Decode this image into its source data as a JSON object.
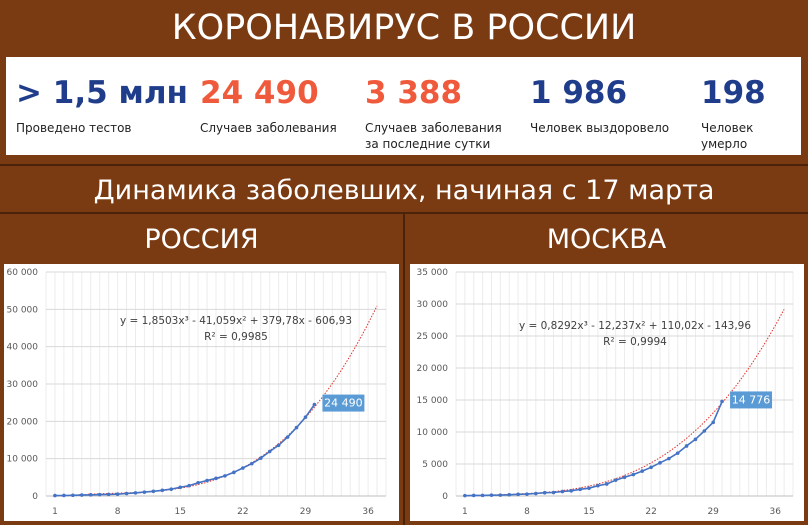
{
  "header": {
    "title": "КОРОНАВИРУС В РОССИИ"
  },
  "stats": [
    {
      "value": "> 1,5 млн",
      "label": "Проведено тестов",
      "color": "#1f3d8a"
    },
    {
      "value": "24 490",
      "label": "Случаев заболевания",
      "color": "#f05a3c"
    },
    {
      "value": "3 388",
      "label": "Случаев заболевания за последние сутки",
      "color": "#f05a3c"
    },
    {
      "value": "1 986",
      "label": "Человек выздоровело",
      "color": "#1f3d8a"
    },
    {
      "value": "198",
      "label": "Человек умерло",
      "color": "#1f3d8a"
    }
  ],
  "subtitle": "Динамика заболевших, начиная с 17 марта",
  "regions": {
    "russia": "РОССИЯ",
    "moscow": "МОСКВА"
  },
  "chart_data": [
    {
      "type": "scatter",
      "region": "РОССИЯ",
      "xlim": [
        0,
        38
      ],
      "ylim": [
        0,
        60000
      ],
      "x_ticks": [
        1,
        8,
        15,
        22,
        29,
        36
      ],
      "y_ticks": [
        "0",
        "10 000",
        "20 000",
        "30 000",
        "40 000",
        "50 000",
        "60 000"
      ],
      "y_tick_values": [
        0,
        10000,
        20000,
        30000,
        40000,
        50000,
        60000
      ],
      "series_color": "#4472c4",
      "trend_color": "#e0302a",
      "x": [
        1,
        2,
        3,
        4,
        5,
        6,
        7,
        8,
        9,
        10,
        11,
        12,
        13,
        14,
        15,
        16,
        17,
        18,
        19,
        20,
        21,
        22,
        23,
        24,
        25,
        26,
        27,
        28,
        29,
        30
      ],
      "values": [
        114,
        147,
        199,
        253,
        306,
        367,
        438,
        495,
        658,
        840,
        1036,
        1264,
        1534,
        1836,
        2337,
        2777,
        3548,
        4149,
        4731,
        5389,
        6343,
        7497,
        8672,
        10131,
        11917,
        13584,
        15770,
        18328,
        21102,
        24490
      ],
      "trendline": {
        "type": "poly3",
        "coefficients": [
          1.8503,
          -41.059,
          379.78,
          -606.93
        ],
        "x_end": 37
      },
      "equation": "y = 1,8503x³ - 41,059x² + 379,78x - 606,93",
      "r_squared": "R² = 0,9985",
      "last_label": "24 490"
    },
    {
      "type": "scatter",
      "region": "МОСКВА",
      "xlim": [
        0,
        38
      ],
      "ylim": [
        0,
        35000
      ],
      "x_ticks": [
        1,
        8,
        15,
        22,
        29,
        36
      ],
      "y_ticks": [
        "0",
        "5 000",
        "10 000",
        "15 000",
        "20 000",
        "25 000",
        "30 000",
        "35 000"
      ],
      "y_tick_values": [
        0,
        5000,
        10000,
        15000,
        20000,
        25000,
        30000,
        35000
      ],
      "series_color": "#4472c4",
      "trend_color": "#e0302a",
      "x": [
        1,
        2,
        3,
        4,
        5,
        6,
        7,
        8,
        9,
        10,
        11,
        12,
        13,
        14,
        15,
        16,
        17,
        18,
        19,
        20,
        21,
        22,
        23,
        24,
        25,
        26,
        27,
        28,
        29,
        30
      ],
      "values": [
        53,
        86,
        98,
        131,
        137,
        191,
        262,
        290,
        388,
        517,
        546,
        703,
        817,
        1044,
        1226,
        1613,
        1880,
        2475,
        2923,
        3357,
        3893,
        4484,
        5181,
        5841,
        6698,
        7822,
        8852,
        10158,
        11513,
        14776
      ],
      "trendline": {
        "type": "poly3",
        "coefficients": [
          0.8292,
          -12.237,
          110.02,
          -143.96
        ],
        "x_end": 37
      },
      "equation": "y = 0,8292x³ - 12,237x² + 110,02x - 143,96",
      "r_squared": "R² = 0,9994",
      "last_label": "14 776"
    }
  ]
}
